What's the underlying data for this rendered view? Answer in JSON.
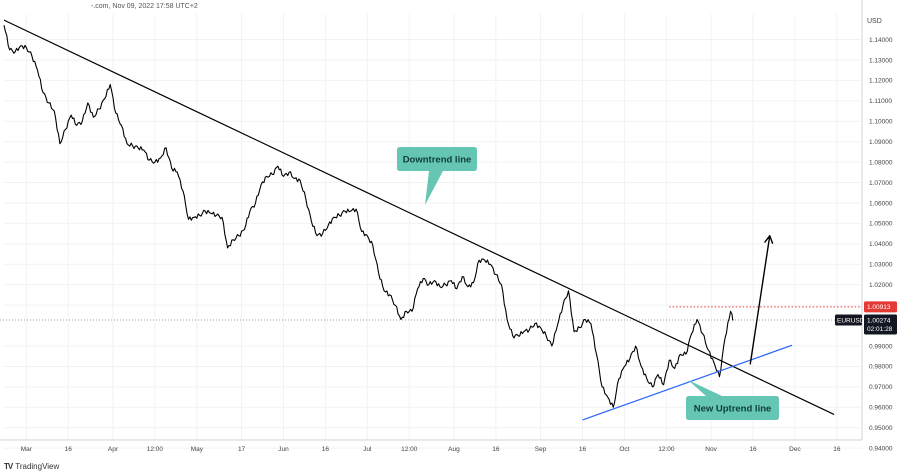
{
  "header": {
    "source": "-.com, Nov 09, 2022 17:58 UTC+2"
  },
  "footer": {
    "brand": "TradingView",
    "logo": "TV"
  },
  "chart_data": {
    "type": "line",
    "title": "",
    "xlabel": "",
    "ylabel": "USD",
    "ylim": [
      0.944,
      1.1525
    ],
    "ytick_labels": [
      "1.14000",
      "1.13000",
      "1.12000",
      "1.11000",
      "1.10000",
      "1.09000",
      "1.08000",
      "1.07000",
      "1.06000",
      "1.05000",
      "1.04000",
      "1.03000",
      "1.02000",
      "1.01000",
      "0.99000",
      "0.98000",
      "0.97000",
      "0.96000",
      "0.95000",
      "0.94000"
    ],
    "yticks": [
      1.14,
      1.13,
      1.12,
      1.11,
      1.1,
      1.09,
      1.08,
      1.07,
      1.06,
      1.05,
      1.04,
      1.03,
      1.02,
      1.01,
      0.99,
      0.98,
      0.97,
      0.96,
      0.95,
      0.94
    ],
    "x_domain": [
      "2022-02-21",
      "2022-12-25"
    ],
    "xtick_labels": [
      {
        "label": "Mar",
        "date": "2022-03-01"
      },
      {
        "label": "16",
        "date": "2022-03-16"
      },
      {
        "label": "Apr",
        "date": "2022-04-01"
      },
      {
        "label": "12:00",
        "date": "2022-04-16"
      },
      {
        "label": "May",
        "date": "2022-05-01"
      },
      {
        "label": "17",
        "date": "2022-05-17"
      },
      {
        "label": "Jun",
        "date": "2022-06-01"
      },
      {
        "label": "16",
        "date": "2022-06-16"
      },
      {
        "label": "Jul",
        "date": "2022-07-01"
      },
      {
        "label": "12:00",
        "date": "2022-07-16"
      },
      {
        "label": "Aug",
        "date": "2022-08-01"
      },
      {
        "label": "16",
        "date": "2022-08-16"
      },
      {
        "label": "Sep",
        "date": "2022-09-01"
      },
      {
        "label": "16",
        "date": "2022-09-16"
      },
      {
        "label": "Oct",
        "date": "2022-10-01"
      },
      {
        "label": "12:00",
        "date": "2022-10-16"
      },
      {
        "label": "Nov",
        "date": "2022-11-01"
      },
      {
        "label": "16",
        "date": "2022-11-16"
      },
      {
        "label": "Dec",
        "date": "2022-12-01"
      },
      {
        "label": "16",
        "date": "2022-12-16"
      }
    ],
    "series": [
      {
        "name": "EURUSD",
        "color": "#000000",
        "points": [
          [
            "2022-02-21",
            1.147
          ],
          [
            "2022-02-23",
            1.135
          ],
          [
            "2022-02-25",
            1.134
          ],
          [
            "2022-02-27",
            1.137
          ],
          [
            "2022-03-01",
            1.136
          ],
          [
            "2022-03-03",
            1.132
          ],
          [
            "2022-03-05",
            1.125
          ],
          [
            "2022-03-07",
            1.114
          ],
          [
            "2022-03-09",
            1.109
          ],
          [
            "2022-03-11",
            1.105
          ],
          [
            "2022-03-13",
            1.089
          ],
          [
            "2022-03-15",
            1.096
          ],
          [
            "2022-03-17",
            1.103
          ],
          [
            "2022-03-19",
            1.098
          ],
          [
            "2022-03-21",
            1.1
          ],
          [
            "2022-03-23",
            1.109
          ],
          [
            "2022-03-25",
            1.102
          ],
          [
            "2022-03-27",
            1.106
          ],
          [
            "2022-03-29",
            1.111
          ],
          [
            "2022-03-31",
            1.118
          ],
          [
            "2022-04-02",
            1.104
          ],
          [
            "2022-04-04",
            1.098
          ],
          [
            "2022-04-06",
            1.089
          ],
          [
            "2022-04-08",
            1.088
          ],
          [
            "2022-04-10",
            1.087
          ],
          [
            "2022-04-12",
            1.086
          ],
          [
            "2022-04-14",
            1.081
          ],
          [
            "2022-04-16",
            1.08
          ],
          [
            "2022-04-18",
            1.082
          ],
          [
            "2022-04-20",
            1.087
          ],
          [
            "2022-04-22",
            1.077
          ],
          [
            "2022-04-24",
            1.075
          ],
          [
            "2022-04-26",
            1.066
          ],
          [
            "2022-04-28",
            1.052
          ],
          [
            "2022-04-30",
            1.053
          ],
          [
            "2022-05-02",
            1.054
          ],
          [
            "2022-05-04",
            1.056
          ],
          [
            "2022-05-06",
            1.055
          ],
          [
            "2022-05-08",
            1.054
          ],
          [
            "2022-05-10",
            1.053
          ],
          [
            "2022-05-12",
            1.038
          ],
          [
            "2022-05-14",
            1.042
          ],
          [
            "2022-05-16",
            1.044
          ],
          [
            "2022-05-18",
            1.047
          ],
          [
            "2022-05-20",
            1.056
          ],
          [
            "2022-05-22",
            1.06
          ],
          [
            "2022-05-24",
            1.069
          ],
          [
            "2022-05-26",
            1.073
          ],
          [
            "2022-05-28",
            1.074
          ],
          [
            "2022-05-30",
            1.078
          ],
          [
            "2022-06-01",
            1.073
          ],
          [
            "2022-06-03",
            1.075
          ],
          [
            "2022-06-05",
            1.072
          ],
          [
            "2022-06-07",
            1.071
          ],
          [
            "2022-06-09",
            1.062
          ],
          [
            "2022-06-11",
            1.051
          ],
          [
            "2022-06-13",
            1.044
          ],
          [
            "2022-06-15",
            1.045
          ],
          [
            "2022-06-17",
            1.049
          ],
          [
            "2022-06-19",
            1.053
          ],
          [
            "2022-06-21",
            1.054
          ],
          [
            "2022-06-23",
            1.056
          ],
          [
            "2022-06-25",
            1.056
          ],
          [
            "2022-06-27",
            1.057
          ],
          [
            "2022-06-29",
            1.046
          ],
          [
            "2022-07-01",
            1.044
          ],
          [
            "2022-07-03",
            1.039
          ],
          [
            "2022-07-05",
            1.026
          ],
          [
            "2022-07-07",
            1.017
          ],
          [
            "2022-07-09",
            1.015
          ],
          [
            "2022-07-11",
            1.01
          ],
          [
            "2022-07-13",
            1.003
          ],
          [
            "2022-07-15",
            1.007
          ],
          [
            "2022-07-17",
            1.007
          ],
          [
            "2022-07-19",
            1.018
          ],
          [
            "2022-07-21",
            1.023
          ],
          [
            "2022-07-23",
            1.02
          ],
          [
            "2022-07-25",
            1.022
          ],
          [
            "2022-07-27",
            1.019
          ],
          [
            "2022-07-29",
            1.02
          ],
          [
            "2022-07-31",
            1.022
          ],
          [
            "2022-08-02",
            1.018
          ],
          [
            "2022-08-04",
            1.024
          ],
          [
            "2022-08-06",
            1.019
          ],
          [
            "2022-08-08",
            1.021
          ],
          [
            "2022-08-10",
            1.032
          ],
          [
            "2022-08-12",
            1.032
          ],
          [
            "2022-08-14",
            1.03
          ],
          [
            "2022-08-16",
            1.025
          ],
          [
            "2022-08-18",
            1.02
          ],
          [
            "2022-08-20",
            1.003
          ],
          [
            "2022-08-22",
            0.995
          ],
          [
            "2022-08-24",
            0.995
          ],
          [
            "2022-08-26",
            0.997
          ],
          [
            "2022-08-28",
            0.998
          ],
          [
            "2022-08-30",
            1.001
          ],
          [
            "2022-09-01",
            0.999
          ],
          [
            "2022-09-03",
            0.995
          ],
          [
            "2022-09-05",
            0.99
          ],
          [
            "2022-09-07",
            1.0
          ],
          [
            "2022-09-09",
            1.01
          ],
          [
            "2022-09-11",
            1.017
          ],
          [
            "2022-09-13",
            0.997
          ],
          [
            "2022-09-15",
            0.999
          ],
          [
            "2022-09-17",
            1.003
          ],
          [
            "2022-09-19",
            1.001
          ],
          [
            "2022-09-21",
            0.986
          ],
          [
            "2022-09-23",
            0.97
          ],
          [
            "2022-09-25",
            0.965
          ],
          [
            "2022-09-27",
            0.96
          ],
          [
            "2022-09-29",
            0.974
          ],
          [
            "2022-10-01",
            0.98
          ],
          [
            "2022-10-03",
            0.984
          ],
          [
            "2022-10-05",
            0.99
          ],
          [
            "2022-10-07",
            0.98
          ],
          [
            "2022-10-09",
            0.974
          ],
          [
            "2022-10-11",
            0.97
          ],
          [
            "2022-10-13",
            0.976
          ],
          [
            "2022-10-15",
            0.971
          ],
          [
            "2022-10-17",
            0.983
          ],
          [
            "2022-10-19",
            0.979
          ],
          [
            "2022-10-21",
            0.986
          ],
          [
            "2022-10-23",
            0.986
          ],
          [
            "2022-10-25",
            0.996
          ],
          [
            "2022-10-27",
            1.003
          ],
          [
            "2022-10-29",
            0.996
          ],
          [
            "2022-10-31",
            0.988
          ],
          [
            "2022-11-02",
            0.982
          ],
          [
            "2022-11-04",
            0.975
          ],
          [
            "2022-11-06",
            0.994
          ],
          [
            "2022-11-08",
            1.007
          ],
          [
            "2022-11-09",
            1.0027
          ]
        ]
      }
    ],
    "annotations": {
      "downtrend": {
        "label": "Downtrend line",
        "from": [
          "2022-02-21",
          1.1495
        ],
        "to": [
          "2022-12-15",
          0.9565
        ],
        "color": "#000000"
      },
      "uptrend": {
        "label": "New Uptrend line",
        "from": [
          "2022-09-16",
          0.9538
        ],
        "to": [
          "2022-11-30",
          0.9904
        ],
        "color": "#2962ff"
      },
      "resistance": {
        "value": 1.00913,
        "from": "2022-10-17",
        "to": "2022-12-25",
        "color": "#e53935",
        "style": "dotted"
      },
      "current_price": {
        "value": 1.00274,
        "color": "#9e9e9e",
        "style": "dotted"
      },
      "projection_arrow": {
        "from": [
          "2022-11-15",
          0.981
        ],
        "to": [
          "2022-11-22",
          1.044
        ],
        "color": "#000000"
      }
    },
    "price_tags": {
      "resistance_label": "1.00913",
      "current_label": "1.00274",
      "countdown": "02:01:28",
      "symbol": "EURUSD"
    },
    "callout_color": "#66c6b4",
    "grid": true,
    "legend": "none"
  }
}
